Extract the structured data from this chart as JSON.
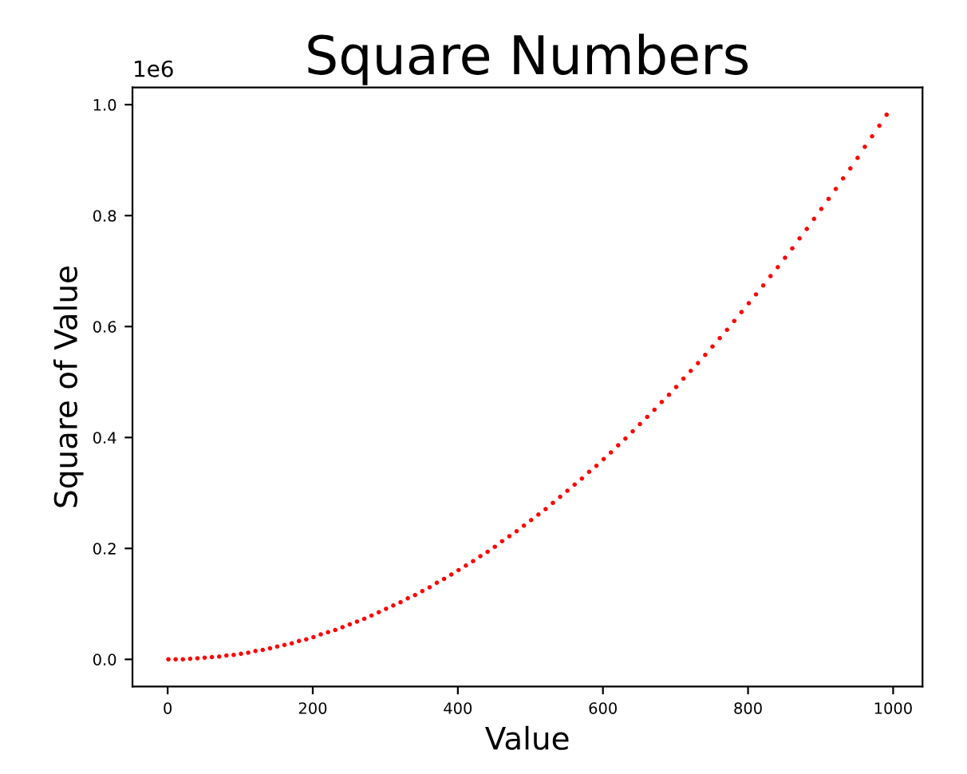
{
  "chart_data": {
    "type": "scatter",
    "title": "Square Numbers",
    "xlabel": "Value",
    "ylabel": "Square of Value",
    "x": [
      1,
      11,
      21,
      31,
      41,
      51,
      61,
      71,
      81,
      91,
      101,
      111,
      121,
      131,
      141,
      151,
      161,
      171,
      181,
      191,
      201,
      211,
      221,
      231,
      241,
      251,
      261,
      271,
      281,
      291,
      301,
      311,
      321,
      331,
      341,
      351,
      361,
      371,
      381,
      391,
      401,
      411,
      421,
      431,
      441,
      451,
      461,
      471,
      481,
      491,
      501,
      511,
      521,
      531,
      541,
      551,
      561,
      571,
      581,
      591,
      601,
      611,
      621,
      631,
      641,
      651,
      661,
      671,
      681,
      691,
      701,
      711,
      721,
      731,
      741,
      751,
      761,
      771,
      781,
      791,
      801,
      811,
      821,
      831,
      841,
      851,
      861,
      871,
      881,
      891,
      901,
      911,
      921,
      931,
      941,
      951,
      961,
      971,
      981,
      991
    ],
    "values": [
      0.0,
      0.0,
      0.0,
      0.001,
      0.002,
      0.003,
      0.004,
      0.005,
      0.007,
      0.008,
      0.01,
      0.012,
      0.015,
      0.017,
      0.02,
      0.023,
      0.026,
      0.029,
      0.033,
      0.036,
      0.04,
      0.045,
      0.049,
      0.053,
      0.058,
      0.063,
      0.068,
      0.073,
      0.079,
      0.085,
      0.091,
      0.097,
      0.103,
      0.11,
      0.116,
      0.123,
      0.13,
      0.138,
      0.145,
      0.153,
      0.161,
      0.169,
      0.177,
      0.186,
      0.194,
      0.203,
      0.213,
      0.222,
      0.231,
      0.241,
      0.251,
      0.261,
      0.271,
      0.282,
      0.293,
      0.304,
      0.315,
      0.326,
      0.338,
      0.349,
      0.361,
      0.373,
      0.386,
      0.398,
      0.411,
      0.424,
      0.437,
      0.45,
      0.464,
      0.477,
      0.491,
      0.506,
      0.52,
      0.534,
      0.549,
      0.564,
      0.579,
      0.594,
      0.61,
      0.626,
      0.642,
      0.658,
      0.674,
      0.691,
      0.707,
      0.724,
      0.741,
      0.759,
      0.776,
      0.794,
      0.812,
      0.83,
      0.848,
      0.867,
      0.885,
      0.904,
      0.924,
      0.943,
      0.962,
      0.982
    ],
    "color": "#ff0000",
    "marker": "circle",
    "xlim": [
      -48.5,
      1040.5
    ],
    "xticks": [
      0,
      200,
      400,
      600,
      800,
      1000
    ],
    "ylim": [
      -0.049,
      1.031
    ],
    "yticks": [
      {
        "value": 0,
        "label": "0.0"
      },
      0.2,
      0.4,
      0.6,
      0.8,
      {
        "value": 1,
        "label": "1.0"
      }
    ],
    "annotations": [
      "1e6"
    ],
    "grid": false,
    "legend": false
  }
}
